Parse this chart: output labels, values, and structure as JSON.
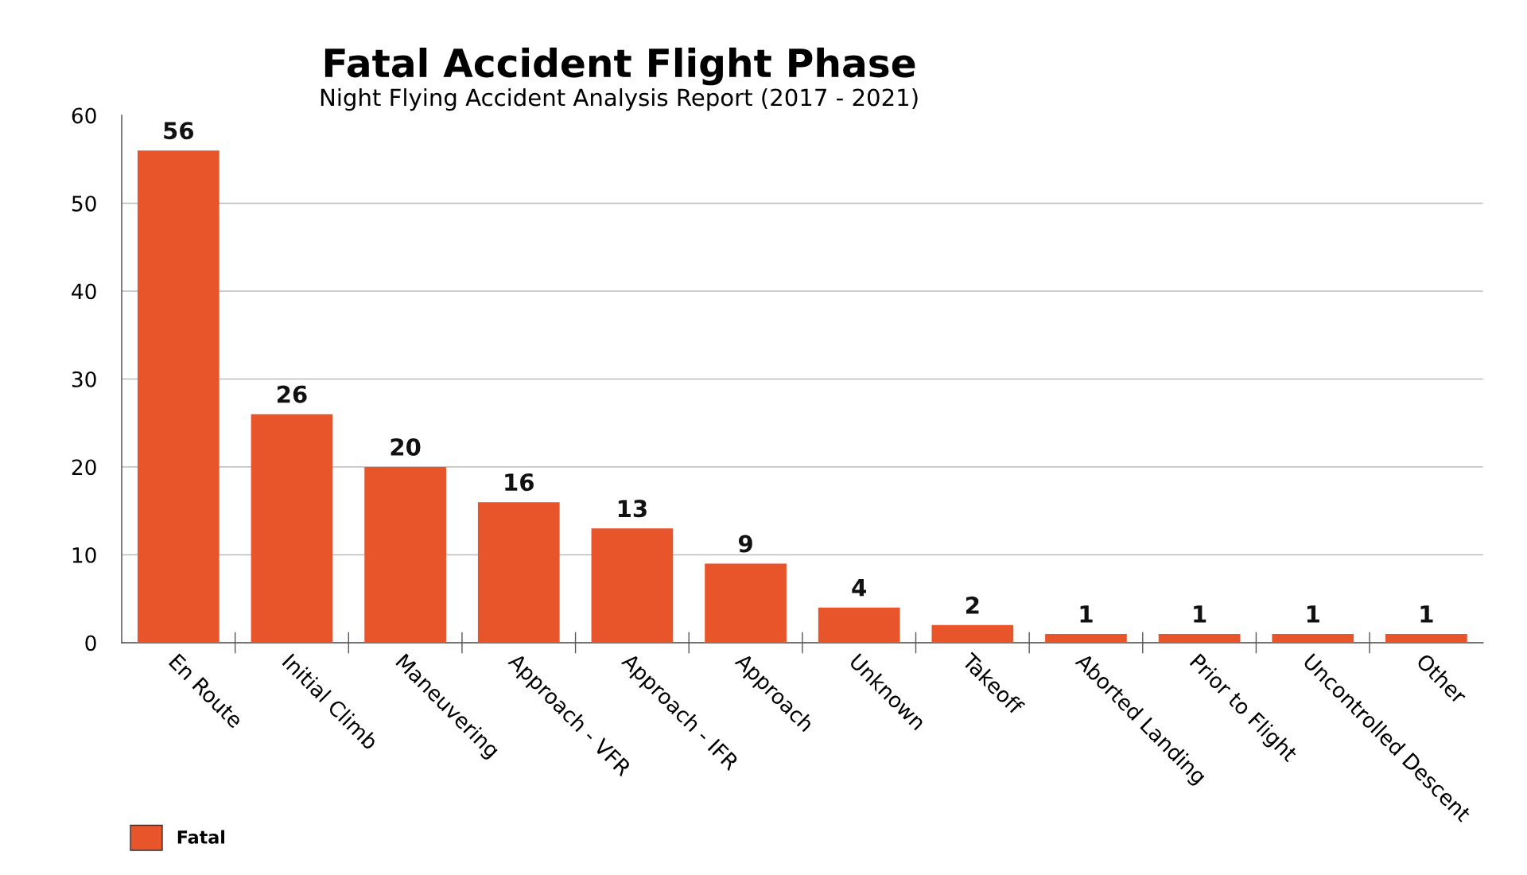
{
  "chart_data": {
    "type": "bar",
    "title": "Fatal Accident Flight Phase",
    "subtitle": "Night Flying Accident Analysis Report (2017 - 2021)",
    "categories": [
      "En Route",
      "Initial Climb",
      "Maneuvering",
      "Approach - VFR",
      "Approach - IFR",
      "Approach",
      "Unknown",
      "Takeoff",
      "Aborted Landing",
      "Prior to Flight",
      "Uncontrolled Descent",
      "Other"
    ],
    "series": [
      {
        "name": "Fatal",
        "color": "#e8552b",
        "values": [
          56,
          26,
          20,
          16,
          13,
          9,
          4,
          2,
          1,
          1,
          1,
          1
        ]
      }
    ],
    "ylim": [
      0,
      60
    ],
    "yticks": [
      0,
      10,
      20,
      30,
      40,
      50,
      60
    ],
    "grid": "y",
    "legend": "bottom left",
    "data_labels": true
  }
}
